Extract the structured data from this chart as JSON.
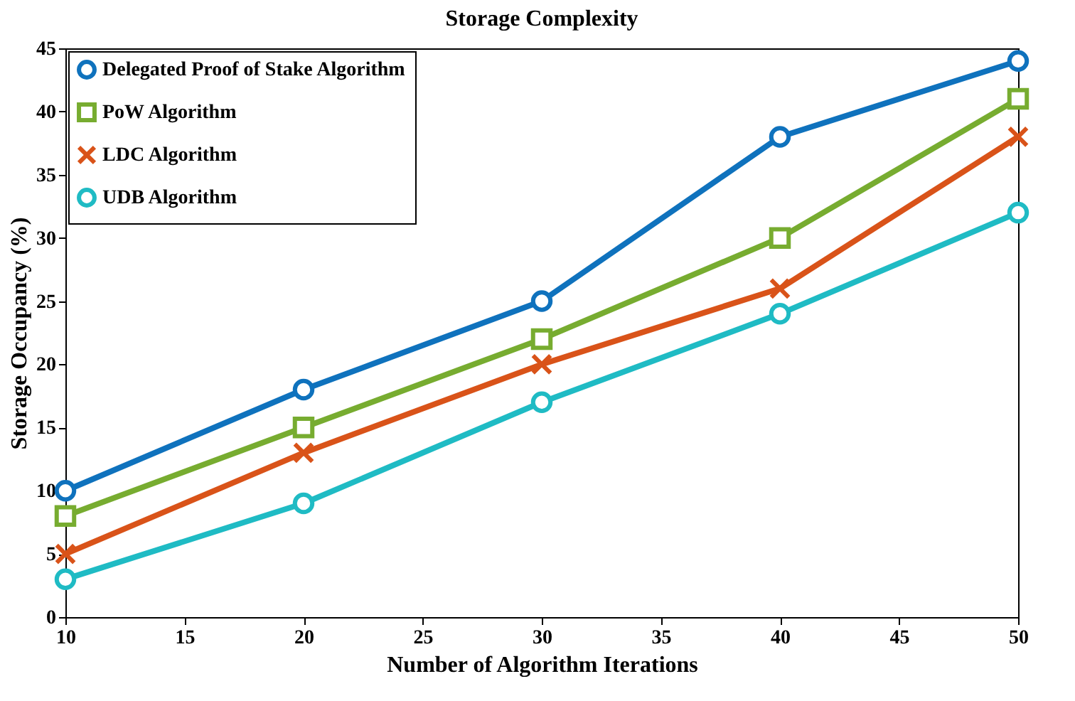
{
  "chart_data": {
    "type": "line",
    "title": "Storage Complexity",
    "xlabel": "Number of Algorithm Iterations",
    "ylabel": "Storage Occupancy (%)",
    "x": [
      10,
      20,
      30,
      40,
      50
    ],
    "xlim": [
      10,
      50
    ],
    "xticks": [
      10,
      15,
      20,
      25,
      30,
      35,
      40,
      45,
      50
    ],
    "ylim": [
      0,
      45
    ],
    "yticks": [
      0,
      5,
      10,
      15,
      20,
      25,
      30,
      35,
      40,
      45
    ],
    "legend": "top left",
    "grid": false,
    "line_style": "solid",
    "series": [
      {
        "name": "Delegated Proof of Stake Algorithm",
        "color": "#0f72bd",
        "marker": "circle",
        "values": [
          10,
          18,
          25,
          38,
          44
        ]
      },
      {
        "name": "PoW Algorithm",
        "color": "#77ac30",
        "marker": "square",
        "values": [
          8,
          15,
          22,
          30,
          41
        ]
      },
      {
        "name": "LDC Algorithm",
        "color": "#d95319",
        "marker": "cross",
        "values": [
          5,
          13,
          20,
          26,
          38
        ]
      },
      {
        "name": "UDB Algorithm",
        "color": "#1fbbc4",
        "marker": "circle",
        "values": [
          3,
          9,
          17,
          24,
          32
        ]
      }
    ]
  }
}
